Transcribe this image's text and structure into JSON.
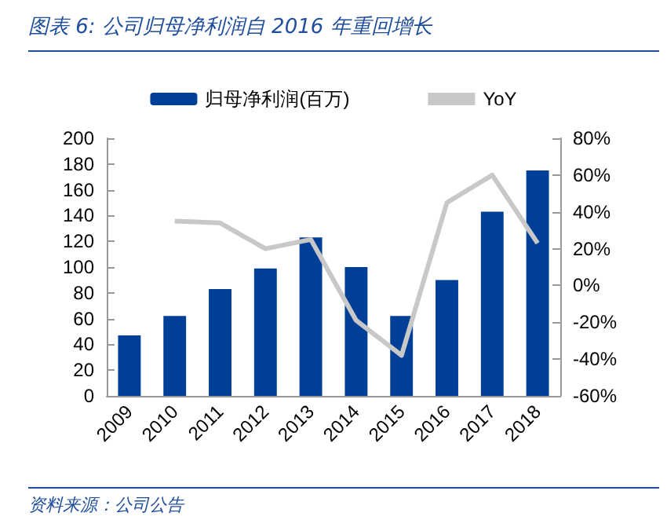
{
  "chart_data": {
    "type": "bar",
    "title": "图表 6:  公司归母净利润自 2016 年重回增长",
    "categories": [
      "2009",
      "2010",
      "2011",
      "2012",
      "2013",
      "2014",
      "2015",
      "2016",
      "2017",
      "2018"
    ],
    "series": [
      {
        "name": "归母净利润(百万)",
        "color": "#003f98",
        "values": [
          47,
          62,
          83,
          99,
          123,
          100,
          62,
          90,
          143,
          175
        ]
      },
      {
        "name": "YoY",
        "type": "line",
        "axis": "y2",
        "color": "#c8c8c8",
        "values": [
          null,
          35,
          34,
          20,
          25,
          -19,
          -38,
          45,
          60,
          23
        ]
      }
    ],
    "ylim": [
      0,
      200
    ],
    "yticks": [
      0,
      20,
      40,
      60,
      80,
      100,
      120,
      140,
      160,
      180,
      200
    ],
    "y2lim": [
      -60,
      80
    ],
    "y2ticks": [
      {
        "value": -60,
        "label": "-60%"
      },
      {
        "value": -40,
        "label": "-40%"
      },
      {
        "value": -20,
        "label": "-20%"
      },
      {
        "value": 0,
        "label": "0%"
      },
      {
        "value": 20,
        "label": "20%"
      },
      {
        "value": 40,
        "label": "40%"
      },
      {
        "value": 60,
        "label": "60%"
      },
      {
        "value": 80,
        "label": "80%"
      }
    ],
    "legend": "top",
    "grid": false,
    "marker": "none",
    "annotations": [
      "资料来源：公司公告"
    ]
  }
}
